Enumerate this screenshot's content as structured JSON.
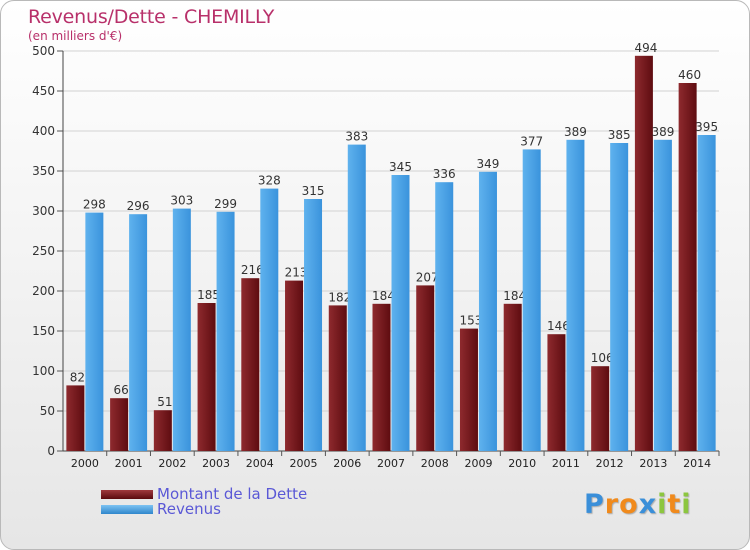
{
  "header": {
    "title": "Revenus/Dette - CHEMILLY",
    "subtitle": "(en milliers d'€)"
  },
  "chart_data": {
    "type": "bar",
    "categories": [
      "2000",
      "2001",
      "2002",
      "2003",
      "2004",
      "2005",
      "2006",
      "2007",
      "2008",
      "2009",
      "2010",
      "2011",
      "2012",
      "2013",
      "2014"
    ],
    "series": [
      {
        "name": "Montant de la Dette",
        "color": "#6e1418",
        "values": [
          82,
          66,
          51,
          185,
          216,
          213,
          182,
          184,
          207,
          153,
          184,
          146,
          106,
          494,
          460
        ]
      },
      {
        "name": "Revenus",
        "color": "#4aa3e6",
        "values": [
          298,
          296,
          303,
          299,
          328,
          315,
          383,
          345,
          336,
          349,
          377,
          389,
          385,
          389,
          395
        ]
      }
    ],
    "ylim": [
      0,
      500
    ],
    "yticks": [
      0,
      50,
      100,
      150,
      200,
      250,
      300,
      350,
      400,
      450,
      500
    ],
    "grid": true,
    "legend_position": "bottom-left"
  },
  "legend": {
    "debt_label": "Montant de la Dette",
    "revenue_label": "Revenus"
  },
  "logo": {
    "text": "Proxiti",
    "letters": [
      "P",
      "r",
      "o",
      "x",
      "i",
      "t",
      "i"
    ],
    "colors": [
      "#3a8fd9",
      "#f08a1c",
      "#f08a1c",
      "#3a8fd9",
      "#8cc63f",
      "#f08a1c",
      "#8cc63f"
    ]
  }
}
